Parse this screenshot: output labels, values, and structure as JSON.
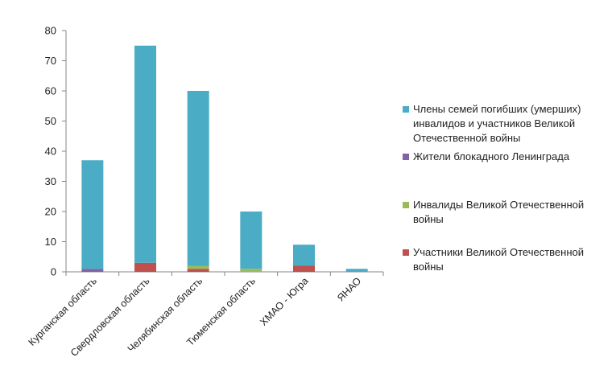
{
  "chart_data": {
    "type": "bar",
    "stacked": true,
    "categories": [
      "Курганская область",
      "Свердловская область",
      "Челябинская область",
      "Тюменская область",
      "ХМАО - Югра",
      "ЯНАО"
    ],
    "series": [
      {
        "name": "Участники Великой Отечественной войны",
        "color": "#c0504d",
        "values": [
          0,
          3,
          1,
          0,
          2,
          0
        ]
      },
      {
        "name": "Инвалиды Великой Отечественной войны",
        "color": "#9bbb59",
        "values": [
          0,
          0,
          1,
          1,
          0,
          0
        ]
      },
      {
        "name": "Жители блокадного Ленинграда",
        "color": "#8064a2",
        "values": [
          1,
          0,
          0,
          0,
          0,
          0
        ]
      },
      {
        "name": "Члены семей погибших (умерших) инвалидов и участников Великой Отечественной войны",
        "color": "#4bacc6",
        "values": [
          36,
          72,
          58,
          19,
          7,
          1
        ]
      }
    ],
    "ylim": [
      0,
      80
    ],
    "yticks": [
      0,
      10,
      20,
      30,
      40,
      50,
      60,
      70,
      80
    ],
    "legend_order": [
      3,
      2,
      1,
      0
    ],
    "legend_position": "right",
    "grid": false
  }
}
